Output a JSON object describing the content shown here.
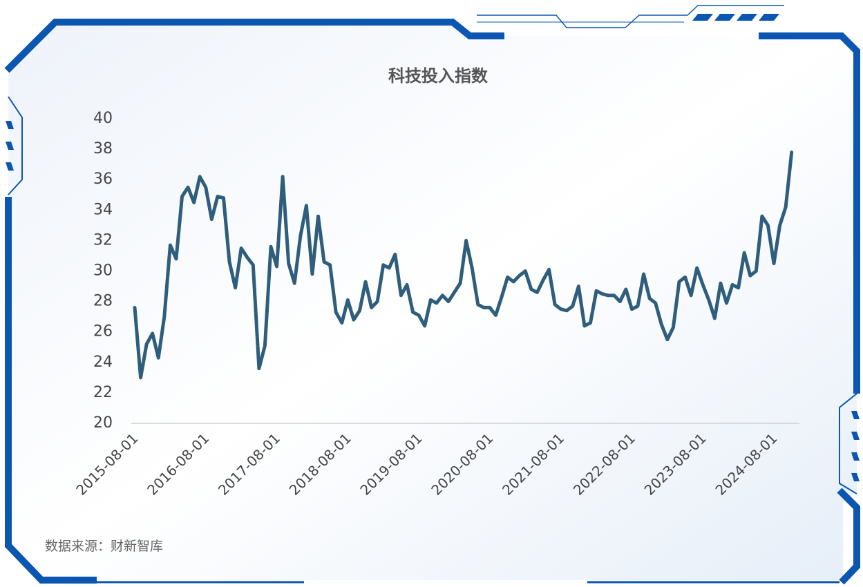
{
  "chart_data": {
    "type": "line",
    "title": "科技投入指数",
    "source": "数据来源：财新智库",
    "categories": [
      "2015-08-01",
      null,
      null,
      null,
      null,
      null,
      null,
      null,
      null,
      null,
      null,
      null,
      "2016-08-01",
      null,
      null,
      null,
      null,
      null,
      null,
      null,
      null,
      null,
      null,
      null,
      "2017-08-01",
      null,
      null,
      null,
      null,
      null,
      null,
      null,
      null,
      null,
      null,
      null,
      "2018-08-01",
      null,
      null,
      null,
      null,
      null,
      null,
      null,
      null,
      null,
      null,
      null,
      "2019-08-01",
      null,
      null,
      null,
      null,
      null,
      null,
      null,
      null,
      null,
      null,
      null,
      "2020-08-01",
      null,
      null,
      null,
      null,
      null,
      null,
      null,
      null,
      null,
      null,
      null,
      "2021-08-01",
      null,
      null,
      null,
      null,
      null,
      null,
      null,
      null,
      null,
      null,
      null,
      "2022-08-01",
      null,
      null,
      null,
      null,
      null,
      null,
      null,
      null,
      null,
      null,
      null,
      "2023-08-01",
      null,
      null,
      null,
      null,
      null,
      null,
      null,
      null,
      null,
      null,
      null,
      "2024-08-01",
      null,
      null,
      null
    ],
    "series": [
      {
        "name": "科技投入指数",
        "color": "#2f5e7c",
        "values": [
          27.6,
          23.0,
          25.2,
          25.9,
          24.3,
          27.0,
          31.7,
          30.8,
          34.9,
          35.5,
          34.5,
          36.2,
          35.5,
          33.4,
          34.9,
          34.8,
          30.6,
          28.9,
          31.5,
          30.9,
          30.4,
          23.6,
          25.1,
          31.6,
          30.3,
          36.2,
          30.5,
          29.2,
          32.3,
          34.3,
          29.8,
          33.6,
          30.6,
          30.4,
          27.3,
          26.6,
          28.1,
          26.8,
          27.4,
          29.3,
          27.6,
          28.0,
          30.4,
          30.2,
          31.1,
          28.4,
          29.1,
          27.3,
          27.1,
          26.4,
          28.1,
          27.9,
          28.4,
          28.0,
          28.6,
          29.2,
          32.0,
          30.2,
          27.8,
          27.6,
          27.6,
          27.1,
          28.3,
          29.6,
          29.3,
          29.7,
          30.0,
          28.8,
          28.6,
          29.4,
          30.1,
          27.8,
          27.5,
          27.4,
          27.7,
          29.0,
          26.4,
          26.6,
          28.7,
          28.5,
          28.4,
          28.4,
          28.0,
          28.8,
          27.5,
          27.7,
          29.8,
          28.2,
          27.9,
          26.5,
          25.5,
          26.3,
          29.3,
          29.6,
          28.4,
          30.2,
          29.1,
          28.1,
          26.9,
          29.2,
          27.9,
          29.1,
          28.9,
          31.2,
          29.7,
          30.0,
          33.6,
          33.0,
          30.5,
          33.0,
          34.2,
          37.8
        ]
      }
    ],
    "ylim": [
      20,
      40
    ],
    "yticks": [
      20,
      22,
      24,
      26,
      28,
      30,
      32,
      34,
      36,
      38,
      40
    ],
    "grid": false
  }
}
